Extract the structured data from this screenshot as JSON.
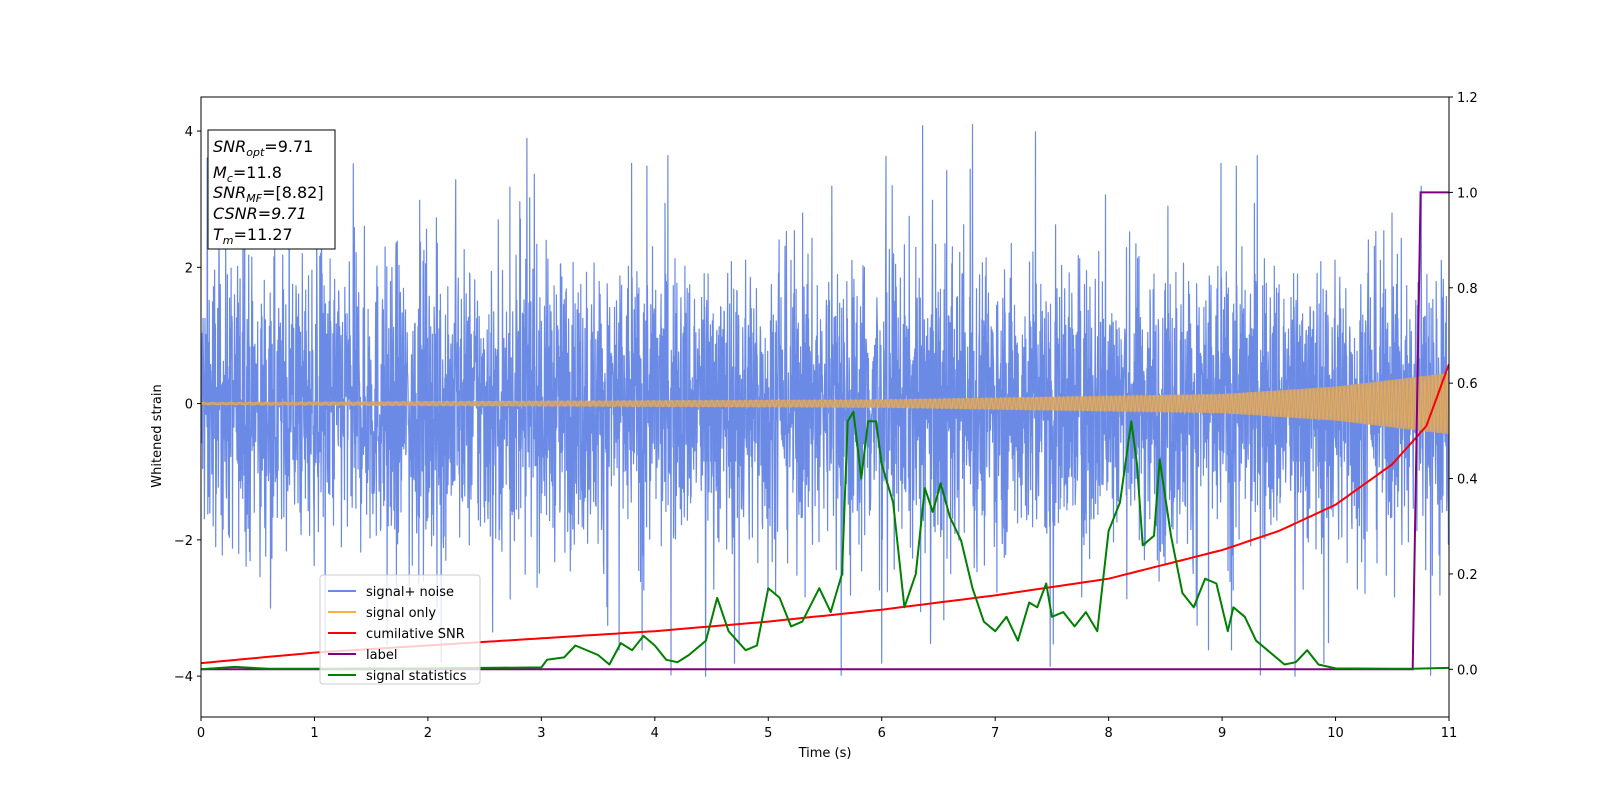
{
  "chart_data": {
    "type": "line",
    "xlabel": "Time (s)",
    "ylabel": "Whitened strain",
    "xlim": [
      0,
      11
    ],
    "ylim": [
      -4.6,
      4.5
    ],
    "y2lim": [
      -0.1,
      1.2
    ],
    "x_ticks": [
      0,
      1,
      2,
      3,
      4,
      5,
      6,
      7,
      8,
      9,
      10,
      11
    ],
    "y_ticks": [
      -4,
      -2,
      0,
      2,
      4
    ],
    "y2_ticks": [
      0.0,
      0.2,
      0.4,
      0.6,
      0.8,
      1.0,
      1.2
    ],
    "x_tick_labels": [
      "0",
      "1",
      "2",
      "3",
      "4",
      "5",
      "6",
      "7",
      "8",
      "9",
      "10",
      "11"
    ],
    "y_tick_labels": [
      "−4",
      "−2",
      "0",
      "2",
      "4"
    ],
    "y2_tick_labels": [
      "0.0",
      "0.2",
      "0.4",
      "0.6",
      "0.8",
      "1.0",
      "1.2"
    ],
    "grid": false,
    "legend_position": "lower-left",
    "colors": {
      "noise": "#6a8ae6",
      "signal": "#f5b041",
      "csnr": "#ff0000",
      "label": "#800080",
      "stats": "#008000",
      "overlap": "#c8a07a"
    },
    "series": [
      {
        "name": "signal+ noise",
        "axis": "left",
        "description_free": true,
        "envelope": {
          "typical": 1.7,
          "spike_max": 4.1,
          "spike_min": -4.0
        }
      },
      {
        "name": "signal only",
        "axis": "left",
        "amplitude_points": [
          [
            0,
            0.02
          ],
          [
            6,
            0.06
          ],
          [
            9,
            0.14
          ],
          [
            10,
            0.25
          ],
          [
            11,
            0.45
          ]
        ]
      },
      {
        "name": "cumilative SNR",
        "axis": "right",
        "points": [
          [
            0,
            0.013
          ],
          [
            1,
            0.035
          ],
          [
            2,
            0.05
          ],
          [
            3,
            0.065
          ],
          [
            4,
            0.08
          ],
          [
            5,
            0.1
          ],
          [
            6,
            0.125
          ],
          [
            7,
            0.155
          ],
          [
            8,
            0.19
          ],
          [
            9,
            0.25
          ],
          [
            9.5,
            0.29
          ],
          [
            10,
            0.345
          ],
          [
            10.5,
            0.43
          ],
          [
            10.8,
            0.51
          ],
          [
            11,
            0.64
          ]
        ]
      },
      {
        "name": "label",
        "axis": "right",
        "points": [
          [
            0,
            0
          ],
          [
            10.68,
            0
          ],
          [
            10.75,
            1.0
          ],
          [
            11,
            1.0
          ]
        ]
      },
      {
        "name": "signal statistics",
        "axis": "right",
        "points": [
          [
            0,
            0
          ],
          [
            0.3,
            0.005
          ],
          [
            0.6,
            0.001
          ],
          [
            1,
            0.001
          ],
          [
            2,
            0.002
          ],
          [
            2.5,
            0.003
          ],
          [
            3,
            0.004
          ],
          [
            3.05,
            0.02
          ],
          [
            3.2,
            0.025
          ],
          [
            3.3,
            0.05
          ],
          [
            3.5,
            0.03
          ],
          [
            3.6,
            0.01
          ],
          [
            3.7,
            0.055
          ],
          [
            3.8,
            0.04
          ],
          [
            3.9,
            0.07
          ],
          [
            4.0,
            0.05
          ],
          [
            4.1,
            0.02
          ],
          [
            4.2,
            0.015
          ],
          [
            4.3,
            0.03
          ],
          [
            4.45,
            0.06
          ],
          [
            4.55,
            0.15
          ],
          [
            4.65,
            0.08
          ],
          [
            4.8,
            0.04
          ],
          [
            4.9,
            0.05
          ],
          [
            5.0,
            0.17
          ],
          [
            5.1,
            0.15
          ],
          [
            5.2,
            0.09
          ],
          [
            5.3,
            0.1
          ],
          [
            5.45,
            0.17
          ],
          [
            5.55,
            0.12
          ],
          [
            5.65,
            0.2
          ],
          [
            5.7,
            0.52
          ],
          [
            5.75,
            0.54
          ],
          [
            5.82,
            0.4
          ],
          [
            5.88,
            0.52
          ],
          [
            5.95,
            0.52
          ],
          [
            6.0,
            0.43
          ],
          [
            6.1,
            0.35
          ],
          [
            6.2,
            0.13
          ],
          [
            6.3,
            0.2
          ],
          [
            6.38,
            0.38
          ],
          [
            6.45,
            0.33
          ],
          [
            6.52,
            0.39
          ],
          [
            6.6,
            0.32
          ],
          [
            6.7,
            0.27
          ],
          [
            6.8,
            0.17
          ],
          [
            6.9,
            0.1
          ],
          [
            7.0,
            0.08
          ],
          [
            7.1,
            0.11
          ],
          [
            7.2,
            0.06
          ],
          [
            7.3,
            0.14
          ],
          [
            7.37,
            0.13
          ],
          [
            7.45,
            0.18
          ],
          [
            7.5,
            0.11
          ],
          [
            7.6,
            0.12
          ],
          [
            7.7,
            0.09
          ],
          [
            7.8,
            0.12
          ],
          [
            7.9,
            0.08
          ],
          [
            8.0,
            0.29
          ],
          [
            8.1,
            0.35
          ],
          [
            8.2,
            0.52
          ],
          [
            8.25,
            0.43
          ],
          [
            8.3,
            0.26
          ],
          [
            8.4,
            0.28
          ],
          [
            8.45,
            0.44
          ],
          [
            8.55,
            0.28
          ],
          [
            8.65,
            0.16
          ],
          [
            8.75,
            0.13
          ],
          [
            8.85,
            0.19
          ],
          [
            8.95,
            0.18
          ],
          [
            9.05,
            0.08
          ],
          [
            9.1,
            0.13
          ],
          [
            9.2,
            0.11
          ],
          [
            9.3,
            0.06
          ],
          [
            9.4,
            0.04
          ],
          [
            9.55,
            0.01
          ],
          [
            9.65,
            0.015
          ],
          [
            9.75,
            0.04
          ],
          [
            9.85,
            0.01
          ],
          [
            10.0,
            0.002
          ],
          [
            10.5,
            0.001
          ],
          [
            10.68,
            0.001
          ],
          [
            11,
            0.003
          ]
        ]
      }
    ]
  },
  "info_box": {
    "snr_opt_main": "SNR",
    "snr_opt_sub": "opt",
    "snr_opt_val": "=9.71",
    "mc_main": "M",
    "mc_sub": "c",
    "mc_val": "=11.8",
    "snr_mf_main": "SNR",
    "snr_mf_sub": "MF",
    "snr_mf_val": "=[8.82]",
    "csnr": "CSNR=9.71",
    "tm_main": "T",
    "tm_sub": "m",
    "tm_val": "=11.27"
  },
  "legend": {
    "items": [
      {
        "label": "signal+ noise",
        "color": "#6a8ae6"
      },
      {
        "label": "signal only",
        "color": "#f5b041"
      },
      {
        "label": "cumilative SNR",
        "color": "#ff0000"
      },
      {
        "label": "label",
        "color": "#800080"
      },
      {
        "label": "signal statistics",
        "color": "#008000"
      }
    ]
  }
}
